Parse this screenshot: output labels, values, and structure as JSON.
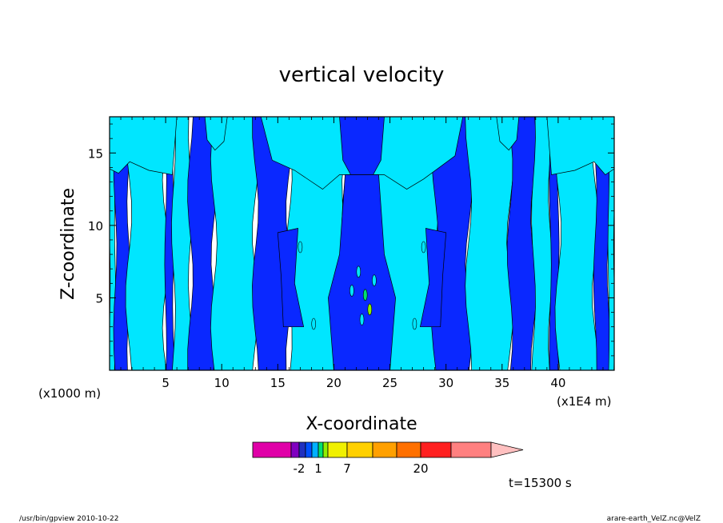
{
  "chart_data": {
    "type": "heatmap",
    "title": "vertical velocity",
    "xlabel": "X-coordinate",
    "ylabel": "Z-coordinate",
    "x_unit_left": "(x1000 m)",
    "x_unit_right": "(x1E4 m)",
    "xlim": [
      0,
      45
    ],
    "ylim": [
      0,
      17.5
    ],
    "x_ticks": [
      5,
      10,
      15,
      20,
      25,
      30,
      35,
      40
    ],
    "y_ticks": [
      5,
      10,
      15
    ],
    "grid": false,
    "time_label": "t=15300 s",
    "colorbar": {
      "colors": [
        "#e000a8",
        "#8000c0",
        "#2030c0",
        "#0050ff",
        "#00b0ff",
        "#00e070",
        "#90ee00",
        "#f0f000",
        "#ffd000",
        "#ffa000",
        "#ff7000",
        "#ff2020",
        "#ff8080",
        "#ffc0c0"
      ],
      "tick_labels": [
        {
          "label": "-2",
          "index": 2
        },
        {
          "label": "1",
          "index": 5
        },
        {
          "label": "7",
          "index": 8
        },
        {
          "label": "20",
          "index": 11
        }
      ]
    },
    "field_colors": {
      "negative": "#0a28ff",
      "positive": "#00e6ff"
    },
    "columns": [
      {
        "x": [
          0.0,
          0.5
        ],
        "sign": "positive"
      },
      {
        "x": [
          0.5,
          1.7
        ],
        "sign": "negative"
      },
      {
        "x": [
          1.7,
          5.0
        ],
        "sign": "positive"
      },
      {
        "x": [
          5.0,
          5.7
        ],
        "sign": "negative"
      },
      {
        "x": [
          5.7,
          7.2
        ],
        "sign": "positive"
      },
      {
        "x": [
          7.2,
          9.3
        ],
        "sign": "negative"
      },
      {
        "x": [
          9.3,
          13.0
        ],
        "sign": "positive"
      },
      {
        "x": [
          13.0,
          16.0
        ],
        "sign": "negative"
      },
      {
        "x": [
          16.0,
          21.0
        ],
        "sign": "positive"
      },
      {
        "x": [
          21.0,
          24.0
        ],
        "sign": "negative"
      },
      {
        "x": [
          24.0,
          29.0
        ],
        "sign": "positive"
      },
      {
        "x": [
          29.0,
          32.0
        ],
        "sign": "negative"
      },
      {
        "x": [
          32.0,
          35.7
        ],
        "sign": "positive"
      },
      {
        "x": [
          35.7,
          37.8
        ],
        "sign": "negative"
      },
      {
        "x": [
          37.8,
          39.3
        ],
        "sign": "positive"
      },
      {
        "x": [
          39.3,
          40.0
        ],
        "sign": "negative"
      },
      {
        "x": [
          40.0,
          43.3
        ],
        "sign": "positive"
      },
      {
        "x": [
          43.3,
          44.5
        ],
        "sign": "negative"
      },
      {
        "x": [
          44.5,
          45.0
        ],
        "sign": "positive"
      }
    ]
  },
  "footer": {
    "left": "/usr/bin/gpview   2010-10-22",
    "right": "arare-earth_VelZ.nc@VelZ"
  }
}
